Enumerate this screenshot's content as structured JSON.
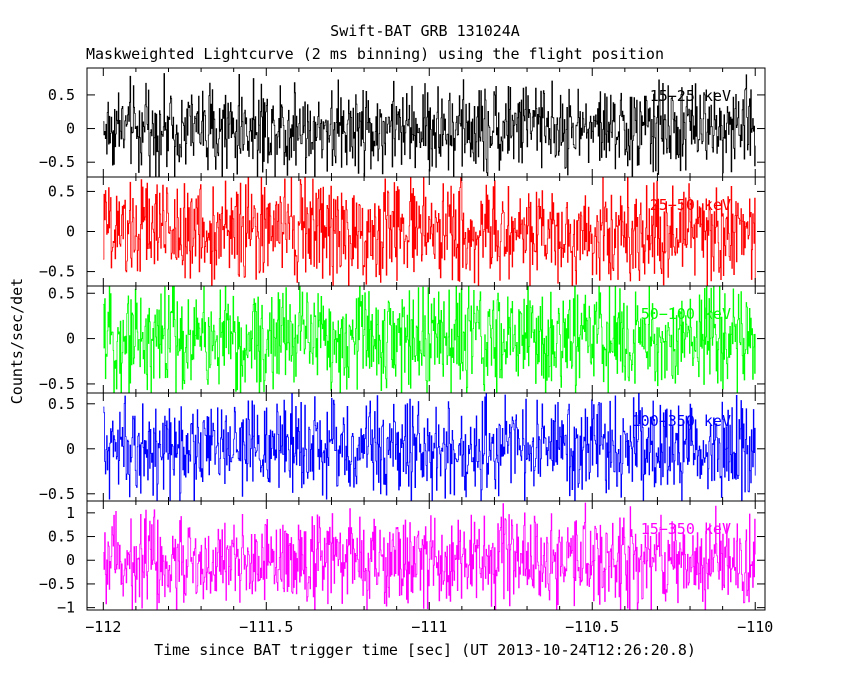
{
  "title": "Swift-BAT GRB 131024A",
  "subtitle": "Maskweighted Lightcurve (2 ms binning) using the flight position",
  "chart_data": {
    "type": "line",
    "title": "Swift-BAT GRB 131024A",
    "subtitle": "Maskweighted Lightcurve (2 ms binning) using the flight position",
    "xlabel": "Time since BAT trigger time [sec] (UT 2013-10-24T12:26:20.8)",
    "ylabel": "Counts/sec/det",
    "xlim": [
      -112.05,
      -109.97
    ],
    "x_ticks": [
      -112,
      -111.5,
      -111,
      -110.5,
      -110
    ],
    "x_tick_labels": [
      "−112",
      "−111.5",
      "−111",
      "−110.5",
      "−110"
    ],
    "x_data_range": [
      -112,
      -110
    ],
    "bin_width_ms": 2,
    "grid": false,
    "panels": [
      {
        "name": "15-25 keV",
        "band_label": "15−25 keV",
        "color": "#000000",
        "ylim": [
          -0.72,
          0.9
        ],
        "y_ticks": [
          0.5,
          0,
          -0.5
        ],
        "y_tick_labels": [
          "0.5",
          "0",
          "−0.5"
        ],
        "amplitude": 0.3,
        "extreme": 0.75
      },
      {
        "name": "25-50 keV",
        "band_label": "25−50 keV",
        "color": "#ff0000",
        "ylim": [
          -0.68,
          0.68
        ],
        "y_ticks": [
          0.5,
          0,
          -0.5
        ],
        "y_tick_labels": [
          "0.5",
          "0",
          "−0.5"
        ],
        "amplitude": 0.3,
        "extreme": 0.65
      },
      {
        "name": "50-100 keV",
        "band_label": "50−100 keV",
        "color": "#00ff00",
        "ylim": [
          -0.6,
          0.58
        ],
        "y_ticks": [
          0.5,
          0,
          -0.5
        ],
        "y_tick_labels": [
          "0.5",
          "0",
          "−0.5"
        ],
        "amplitude": 0.28,
        "extreme": 0.6
      },
      {
        "name": "100-350 keV",
        "band_label": "100−350 keV",
        "color": "#0000ff",
        "ylim": [
          -0.58,
          0.62
        ],
        "y_ticks": [
          0.5,
          0,
          -0.5
        ],
        "y_tick_labels": [
          "0.5",
          "0",
          "−0.5"
        ],
        "amplitude": 0.25,
        "extreme": 0.6
      },
      {
        "name": "15-350 keV",
        "band_label": "15−350 keV",
        "color": "#ff00ff",
        "ylim": [
          -1.05,
          1.25
        ],
        "y_ticks": [
          1,
          0.5,
          0,
          -0.5,
          -1
        ],
        "y_tick_labels": [
          "1",
          "0.5",
          "0",
          "−0.5",
          "−1"
        ],
        "amplitude": 0.45,
        "extreme": 1.1
      }
    ]
  }
}
